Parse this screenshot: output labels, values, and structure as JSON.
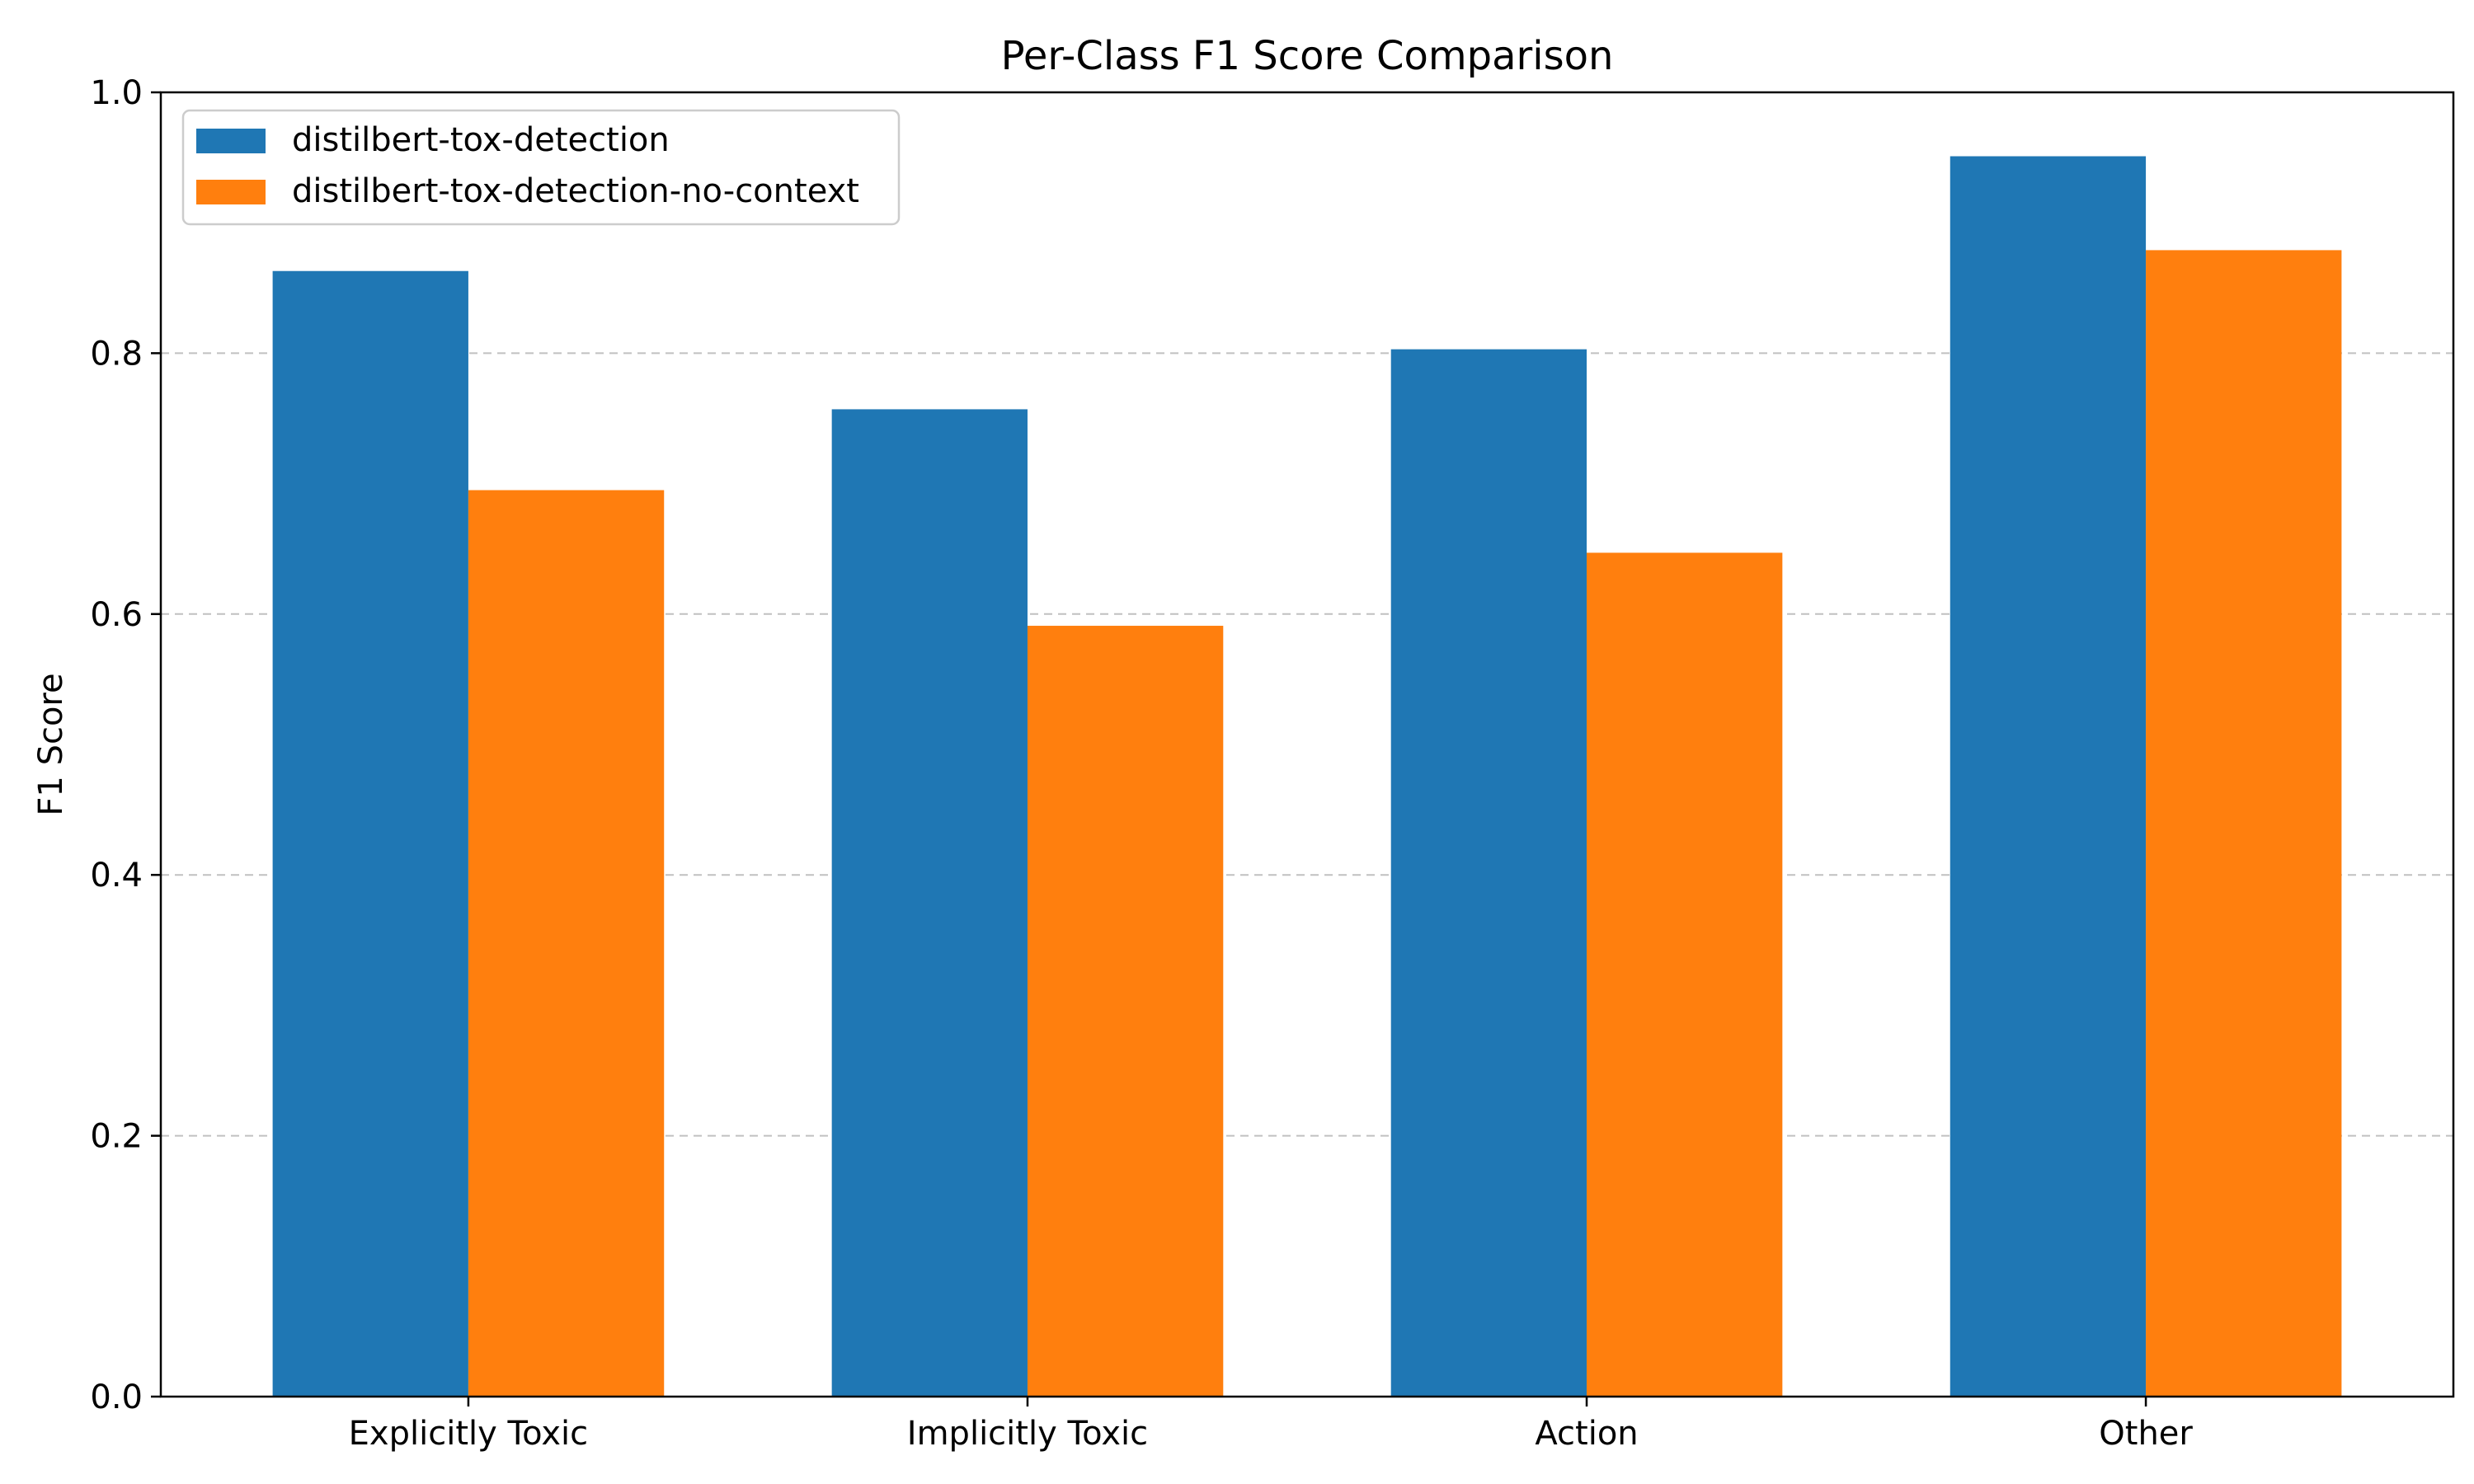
{
  "chart_data": {
    "type": "bar",
    "title": "Per-Class F1 Score Comparison",
    "xlabel": "",
    "ylabel": "F1 Score",
    "categories": [
      "Explicitly Toxic",
      "Implicitly Toxic",
      "Action",
      "Other"
    ],
    "series": [
      {
        "name": "distilbert-tox-detection",
        "values": [
          0.863,
          0.757,
          0.803,
          0.951
        ],
        "color": "#1f77b4"
      },
      {
        "name": "distilbert-tox-detection-no-context",
        "values": [
          0.695,
          0.591,
          0.647,
          0.879
        ],
        "color": "#ff7f0e"
      }
    ],
    "ylim": [
      0,
      1.0
    ],
    "yticks": [
      "0.0",
      "0.2",
      "0.4",
      "0.6",
      "0.8",
      "1.0"
    ],
    "grid": "horizontal dashed",
    "legend_position": "top-left"
  }
}
